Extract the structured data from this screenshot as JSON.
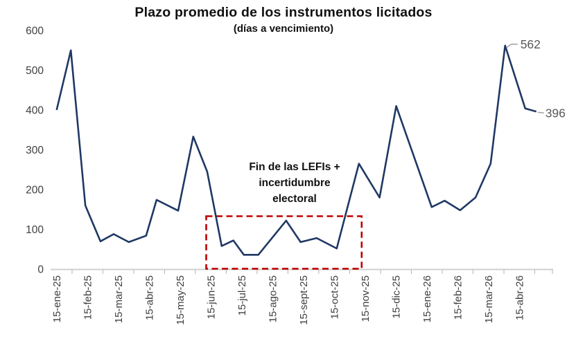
{
  "chart_data": {
    "type": "line",
    "title": "Plazo promedio de los instrumentos licitados",
    "subtitle": "(días a vencimiento)",
    "xlabel": "",
    "ylabel": "",
    "ylim": [
      0,
      600
    ],
    "yticks": [
      0,
      100,
      200,
      300,
      400,
      500,
      600
    ],
    "grid": false,
    "legend": false,
    "x_tick_labels": [
      "15-ene-25",
      "15-feb-25",
      "15-mar-25",
      "15-abr-25",
      "15-may-25",
      "15-jun-25",
      "15-jul-25",
      "15-ago-25",
      "15-sept-25",
      "15-oct-25",
      "15-nov-25",
      "15-dic-25",
      "15-ene-26",
      "15-feb-26",
      "15-mar-26",
      "15-abr-26"
    ],
    "x_unit": "months_after_15_ene_25",
    "series": [
      {
        "name": "Plazo promedio (días a vencimiento)",
        "color": "#1f3864",
        "points": [
          {
            "x": 0.0,
            "y": 400
          },
          {
            "x": 0.46,
            "y": 550
          },
          {
            "x": 0.93,
            "y": 160
          },
          {
            "x": 1.42,
            "y": 70
          },
          {
            "x": 1.85,
            "y": 88
          },
          {
            "x": 2.34,
            "y": 68
          },
          {
            "x": 2.9,
            "y": 84
          },
          {
            "x": 3.24,
            "y": 174
          },
          {
            "x": 3.94,
            "y": 147
          },
          {
            "x": 4.43,
            "y": 333
          },
          {
            "x": 4.88,
            "y": 245
          },
          {
            "x": 5.35,
            "y": 58
          },
          {
            "x": 5.73,
            "y": 72
          },
          {
            "x": 6.07,
            "y": 36
          },
          {
            "x": 6.54,
            "y": 36
          },
          {
            "x": 7.44,
            "y": 122
          },
          {
            "x": 7.91,
            "y": 68
          },
          {
            "x": 8.43,
            "y": 78
          },
          {
            "x": 9.08,
            "y": 52
          },
          {
            "x": 9.8,
            "y": 265
          },
          {
            "x": 10.47,
            "y": 180
          },
          {
            "x": 11.01,
            "y": 410
          },
          {
            "x": 12.16,
            "y": 156
          },
          {
            "x": 12.58,
            "y": 172
          },
          {
            "x": 13.08,
            "y": 148
          },
          {
            "x": 13.58,
            "y": 180
          },
          {
            "x": 14.07,
            "y": 265
          },
          {
            "x": 14.54,
            "y": 562
          },
          {
            "x": 15.19,
            "y": 404
          },
          {
            "x": 15.55,
            "y": 396
          }
        ]
      }
    ],
    "end_labels": [
      {
        "text": "562",
        "x": 14.54,
        "y": 562
      },
      {
        "text": "396",
        "x": 15.55,
        "y": 396
      }
    ],
    "annotation": {
      "lines": [
        "Fin de las LEFIs +",
        "incertidumbre",
        "electoral"
      ]
    },
    "highlight_box": {
      "x0": 4.85,
      "x1": 9.89,
      "y0": 1,
      "y1": 133
    }
  },
  "colors": {
    "line": "#1f3864",
    "highlight_box": "#c00000",
    "axis_line": "#d0d0d0",
    "axis_tick": "#bfbfbf",
    "axis_text": "#3f3f3f",
    "data_label": "#595959",
    "leader_line": "#a6a6a6",
    "title_text": "#111111"
  }
}
